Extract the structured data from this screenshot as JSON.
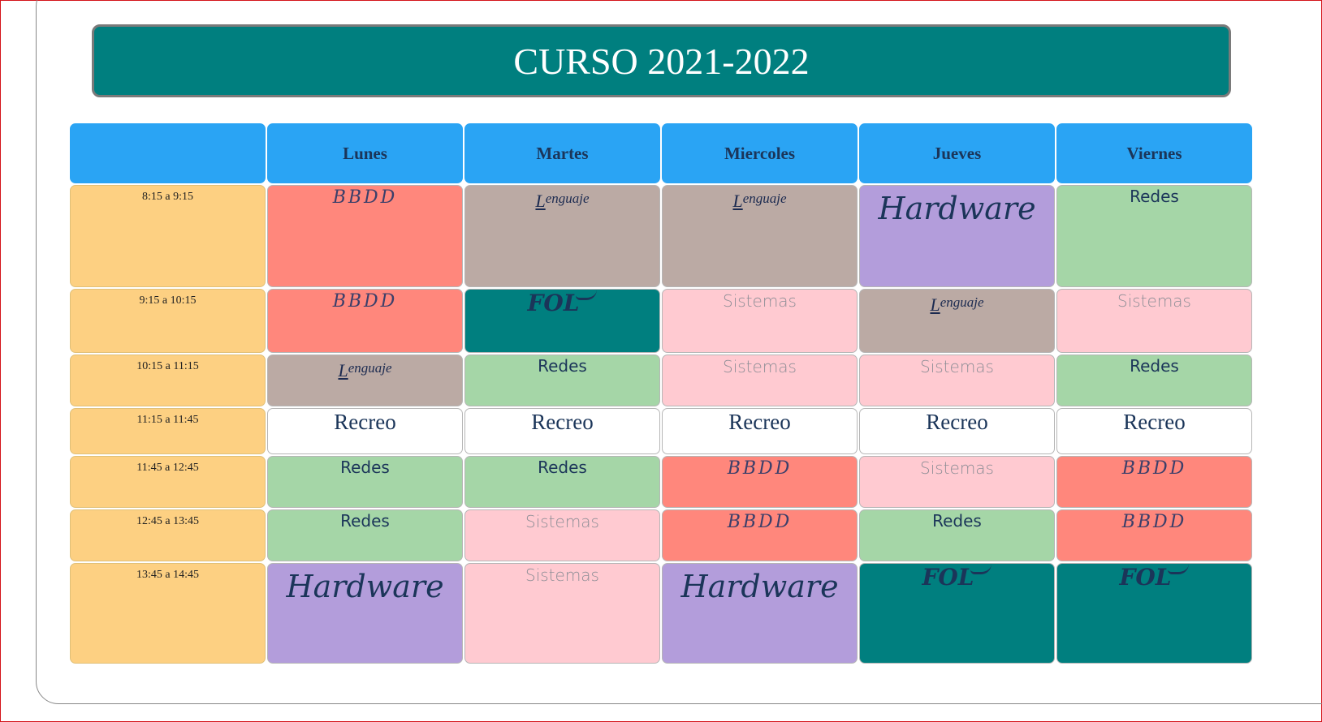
{
  "title": "CURSO 2021-2022",
  "days": [
    "Lunes",
    "Martes",
    "Miercoles",
    "Jueves",
    "Viernes"
  ],
  "times": [
    "8:15 a 9:15",
    "9:15 a 10:15",
    "10:15 a 11:15",
    "11:15 a 11:45",
    "11:45 a 12:45",
    "12:45 a 13:45",
    "13:45 a 14:45"
  ],
  "subjects": {
    "bbdd": "BBDD",
    "lenguaje": "Lenguaje",
    "hardware": "Hardware",
    "redes": "Redes",
    "sistemas": "Sistemas",
    "fol": "FOL",
    "recreo": "Recreo"
  },
  "schedule": [
    [
      "bbdd",
      "lenguaje",
      "lenguaje",
      "hardware",
      "redes"
    ],
    [
      "bbdd",
      "fol",
      "sistemas",
      "lenguaje",
      "sistemas"
    ],
    [
      "lenguaje",
      "redes",
      "sistemas",
      "sistemas",
      "redes"
    ],
    [
      "recreo",
      "recreo",
      "recreo",
      "recreo",
      "recreo"
    ],
    [
      "redes",
      "redes",
      "bbdd",
      "sistemas",
      "bbdd"
    ],
    [
      "redes",
      "sistemas",
      "bbdd",
      "redes",
      "bbdd"
    ],
    [
      "hardware",
      "sistemas",
      "hardware",
      "fol",
      "fol"
    ]
  ],
  "colors": {
    "banner": "#007f7f",
    "header": "#2aa4f4",
    "time": "#fdd082",
    "bbdd": "#ff877c",
    "lenguaje": "#bbaaa4",
    "hardware": "#b39ddb",
    "redes": "#a5d6a7",
    "sistemas": "#ffcad1",
    "fol": "#007f7f",
    "recreo": "#ffffff"
  }
}
